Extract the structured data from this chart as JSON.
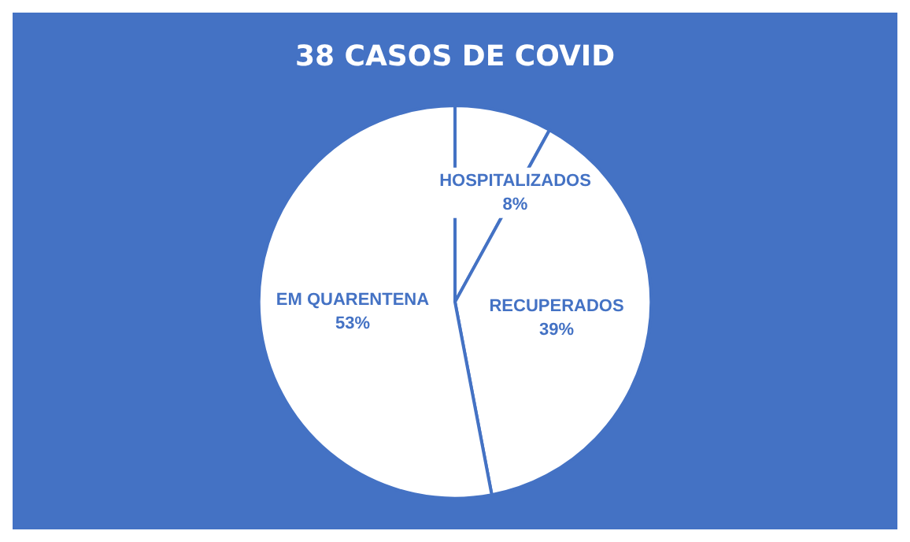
{
  "chart_data": {
    "type": "pie",
    "title": "38 CASOS DE COVID",
    "categories": [
      "HOSPITALIZADOS",
      "RECUPERADOS",
      "EM QUARENTENA"
    ],
    "values": [
      8,
      39,
      53
    ],
    "colors": [
      "#ffffff",
      "#ffffff",
      "#ffffff"
    ],
    "value_labels": [
      "8%",
      "39%",
      "53%"
    ],
    "legend": false
  }
}
